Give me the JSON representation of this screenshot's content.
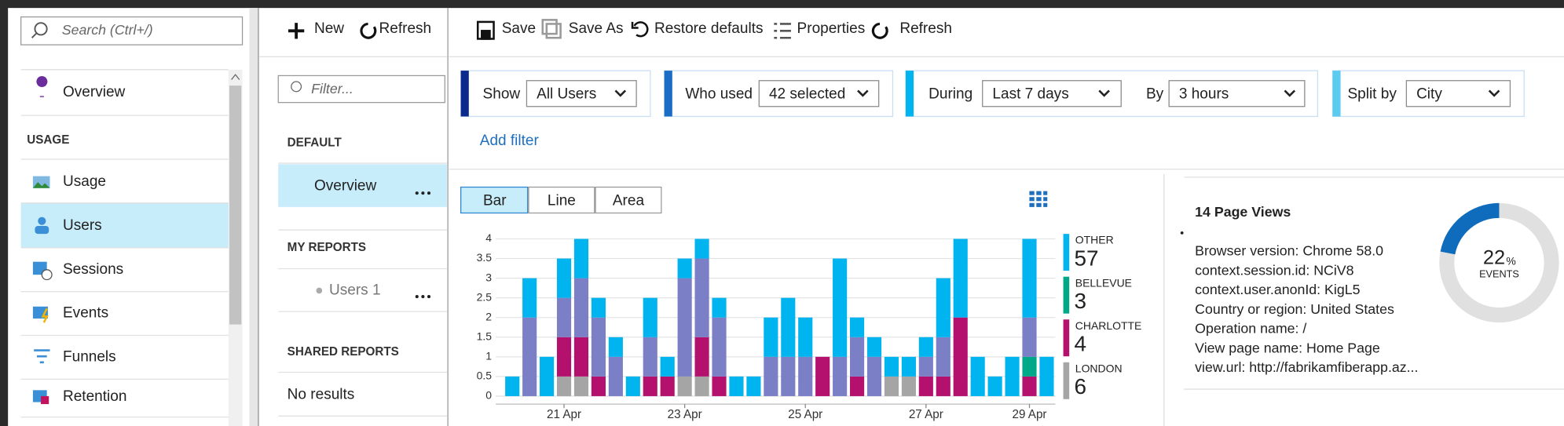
{
  "sidebar": {
    "search_placeholder": "Search (Ctrl+/)",
    "overview": "Overview",
    "section": "USAGE",
    "items": [
      "Usage",
      "Users",
      "Sessions",
      "Events",
      "Funnels",
      "Retention"
    ]
  },
  "reports_panel": {
    "toolbar": [
      "New",
      "Refresh"
    ],
    "filter_placeholder": "Filter...",
    "default_heading": "DEFAULT",
    "default_item": "Overview",
    "my_reports_heading": "MY REPORTS",
    "my_report_item": "Users 1",
    "shared_heading": "SHARED REPORTS",
    "shared_empty": "No results"
  },
  "toolbar": [
    "Save",
    "Save As",
    "Restore defaults",
    "Properties",
    "Refresh"
  ],
  "filters": {
    "show_label": "Show",
    "show_value": "All Users",
    "who_label": "Who used",
    "who_value": "42 selected",
    "during_label": "During",
    "during_value": "Last 7 days",
    "by_label": "By",
    "by_value": "3 hours",
    "split_label": "Split by",
    "split_value": "City",
    "add_filter": "Add filter"
  },
  "chart_tabs": [
    "Bar",
    "Line",
    "Area"
  ],
  "chart_data": {
    "type": "stacked-bar",
    "categories": [
      null,
      null,
      null,
      "21 Apr",
      null,
      null,
      null,
      null,
      null,
      null,
      "23 Apr",
      null,
      null,
      null,
      null,
      null,
      null,
      "25 Apr",
      null,
      null,
      null,
      null,
      null,
      null,
      "27 Apr",
      null,
      null,
      null,
      null,
      null,
      "29 Apr",
      null
    ],
    "ylim": [
      0,
      4
    ],
    "yticks": [
      0,
      0.5,
      1,
      1.5,
      2,
      2.5,
      3,
      3.5,
      4
    ],
    "grid": true,
    "series": [
      {
        "name": "LONDON",
        "legend_value": 6,
        "color": "#a5a5a5",
        "values": [
          0,
          0,
          0,
          0.5,
          0.5,
          0,
          0,
          0,
          0,
          0,
          0.5,
          0.5,
          0,
          0,
          0,
          0,
          0,
          0,
          0,
          0,
          0,
          0,
          0.5,
          0.5,
          0,
          0,
          0,
          0,
          0,
          0,
          0,
          0
        ]
      },
      {
        "name": "CHARLOTTE",
        "legend_value": 4,
        "color": "#b4116f",
        "values": [
          0,
          0,
          0,
          1,
          1,
          0.5,
          0,
          0,
          0.5,
          0.5,
          0,
          1,
          0.5,
          0,
          0,
          0,
          0,
          0,
          1,
          0,
          0.5,
          0,
          0,
          0,
          0.5,
          0.5,
          2,
          0,
          0,
          0,
          0.5,
          0
        ]
      },
      {
        "name": "BELLEVUE",
        "legend_value": 3,
        "color": "#00a88a",
        "values": [
          0,
          0,
          0,
          0,
          0,
          0,
          0,
          0,
          0,
          0,
          0,
          0,
          0,
          0,
          0,
          0,
          0,
          0,
          0,
          0,
          0,
          0,
          0,
          0,
          0,
          0,
          0,
          0,
          0,
          0,
          0.5,
          0
        ]
      },
      {
        "color": "#7a7fc6",
        "values": [
          0,
          2,
          0,
          1,
          1.5,
          1.5,
          1,
          0,
          1,
          0,
          2.5,
          2,
          1.5,
          0,
          0,
          1,
          1,
          1,
          0,
          1,
          1,
          1,
          0,
          0,
          0.5,
          1,
          0,
          0,
          0,
          0,
          1,
          0
        ]
      },
      {
        "name": "OTHER",
        "legend_value": 57,
        "color": "#00b4ef",
        "values": [
          0.5,
          1,
          1,
          1,
          1,
          0.5,
          0.5,
          0.5,
          1,
          0.5,
          0.5,
          0.5,
          0.5,
          0.5,
          0.5,
          1,
          1.5,
          1,
          0,
          2.5,
          0.5,
          0.5,
          0.5,
          0.5,
          0.5,
          1.5,
          2,
          1,
          0.5,
          1,
          2,
          1
        ]
      }
    ]
  },
  "detail": {
    "title": "14 Page Views",
    "lines": [
      "Browser version: Chrome 58.0",
      "context.session.id: NCiV8",
      "context.user.anonId: KigL5",
      "Country or region: United States",
      "Operation name: /",
      "View page name: Home Page",
      "view.url: http://fabrikamfiberapp.az..."
    ],
    "donut": {
      "value": 22,
      "unit": "%",
      "label": "EVENTS",
      "color": "#0f6cbd"
    }
  }
}
